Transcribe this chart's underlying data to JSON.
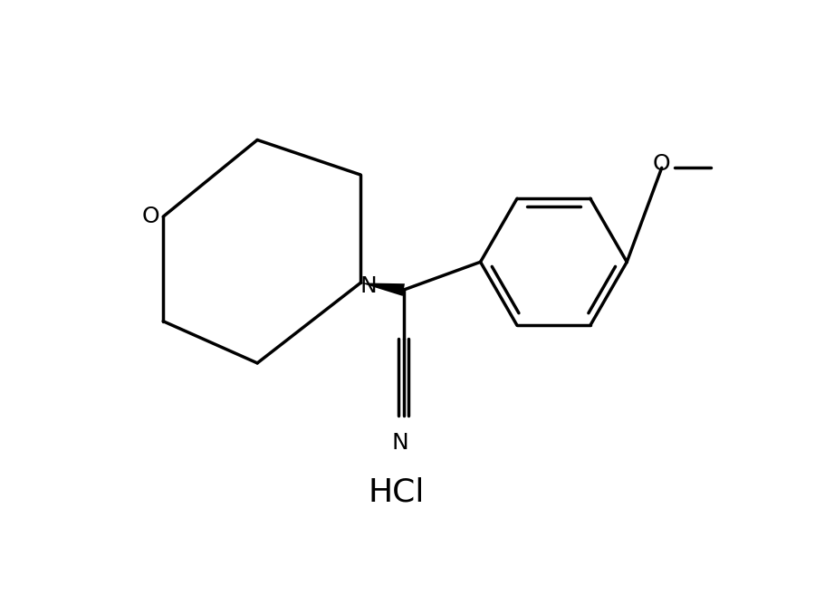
{
  "background_color": "#ffffff",
  "line_color": "#000000",
  "line_width": 2.5,
  "font_size_atoms": 18,
  "font_size_hcl": 26,
  "HCl_label": "HCl",
  "N_label": "N",
  "O_morph_label": "O",
  "O_meth_label": "O",
  "N_nitrile_label": "N",
  "figsize": [
    9.0,
    6.78
  ],
  "dpi": 100
}
